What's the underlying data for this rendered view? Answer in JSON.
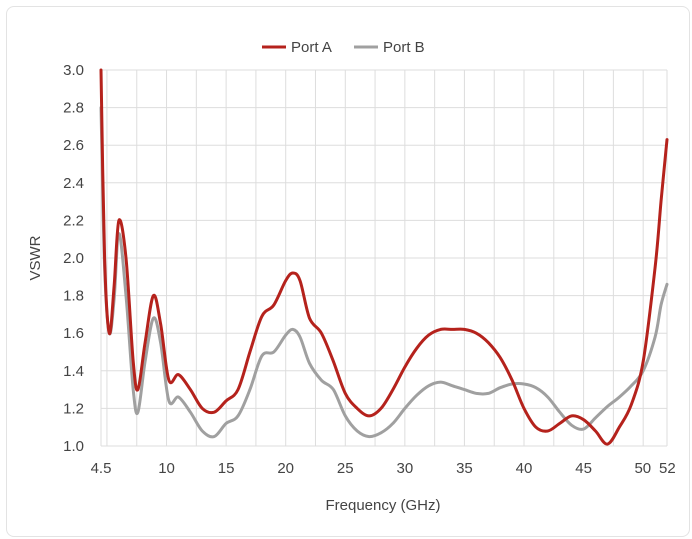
{
  "chart_data": {
    "type": "line",
    "title": "",
    "xlabel": "Frequency (GHz)",
    "ylabel": "VSWR",
    "xlim": [
      4.5,
      52
    ],
    "ylim": [
      1.0,
      3.0
    ],
    "x_ticks": [
      "4.5",
      "10",
      "15",
      "20",
      "25",
      "30",
      "35",
      "40",
      "45",
      "50",
      "52"
    ],
    "x_tick_values": [
      4.5,
      10,
      15,
      20,
      25,
      30,
      35,
      40,
      45,
      50,
      52
    ],
    "y_ticks": [
      "1.0",
      "1.2",
      "1.4",
      "1.6",
      "1.8",
      "2.0",
      "2.2",
      "2.4",
      "2.6",
      "2.8",
      "3.0"
    ],
    "y_tick_values": [
      1.0,
      1.2,
      1.4,
      1.6,
      1.8,
      2.0,
      2.2,
      2.4,
      2.6,
      2.8,
      3.0
    ],
    "grid": true,
    "legend_position": "top-center",
    "series": [
      {
        "name": "Port A",
        "color": "#b5221c",
        "x": [
          4.5,
          4.8,
          5.2,
          5.6,
          6.0,
          6.6,
          7.2,
          7.6,
          8.2,
          8.9,
          9.5,
          10.2,
          11.0,
          12.0,
          13.0,
          14.0,
          15.0,
          16.0,
          17.0,
          18.0,
          19.0,
          20.0,
          20.6,
          21.2,
          22.0,
          23.0,
          24.0,
          25.0,
          26.0,
          27.0,
          28.0,
          29.0,
          30.0,
          31.0,
          32.0,
          33.0,
          34.0,
          35.0,
          36.0,
          37.0,
          38.0,
          39.0,
          40.0,
          41.0,
          42.0,
          43.0,
          44.0,
          45.0,
          46.0,
          47.0,
          48.0,
          49.0,
          50.0,
          51.0,
          51.5,
          52.0
        ],
        "y": [
          3.0,
          2.0,
          1.6,
          1.85,
          2.2,
          2.0,
          1.45,
          1.3,
          1.55,
          1.8,
          1.65,
          1.35,
          1.38,
          1.3,
          1.2,
          1.18,
          1.24,
          1.3,
          1.5,
          1.69,
          1.75,
          1.88,
          1.92,
          1.88,
          1.68,
          1.6,
          1.45,
          1.28,
          1.2,
          1.16,
          1.2,
          1.3,
          1.42,
          1.52,
          1.59,
          1.62,
          1.62,
          1.62,
          1.6,
          1.55,
          1.47,
          1.35,
          1.2,
          1.1,
          1.08,
          1.12,
          1.16,
          1.14,
          1.08,
          1.01,
          1.1,
          1.22,
          1.45,
          1.95,
          2.3,
          2.63
        ]
      },
      {
        "name": "Port B",
        "color": "#a0a0a0",
        "x": [
          4.5,
          4.8,
          5.2,
          5.6,
          6.0,
          6.6,
          7.2,
          7.6,
          8.2,
          8.9,
          9.5,
          10.2,
          11.0,
          12.0,
          13.0,
          14.0,
          15.0,
          16.0,
          17.0,
          18.0,
          19.0,
          20.0,
          20.6,
          21.2,
          22.0,
          23.0,
          24.0,
          25.0,
          26.0,
          27.0,
          28.0,
          29.0,
          30.0,
          31.0,
          32.0,
          33.0,
          34.0,
          35.0,
          36.0,
          37.0,
          38.0,
          39.0,
          40.0,
          41.0,
          42.0,
          43.0,
          44.0,
          45.0,
          46.0,
          47.0,
          48.0,
          49.0,
          50.0,
          51.0,
          51.5,
          52.0
        ],
        "y": [
          2.8,
          1.95,
          1.6,
          1.78,
          2.13,
          1.8,
          1.3,
          1.18,
          1.45,
          1.68,
          1.55,
          1.24,
          1.26,
          1.18,
          1.08,
          1.05,
          1.12,
          1.16,
          1.3,
          1.48,
          1.5,
          1.59,
          1.62,
          1.58,
          1.44,
          1.35,
          1.3,
          1.16,
          1.08,
          1.05,
          1.07,
          1.12,
          1.2,
          1.27,
          1.32,
          1.34,
          1.32,
          1.3,
          1.28,
          1.28,
          1.31,
          1.33,
          1.33,
          1.31,
          1.26,
          1.18,
          1.11,
          1.09,
          1.15,
          1.21,
          1.26,
          1.32,
          1.4,
          1.58,
          1.75,
          1.86
        ]
      }
    ]
  }
}
